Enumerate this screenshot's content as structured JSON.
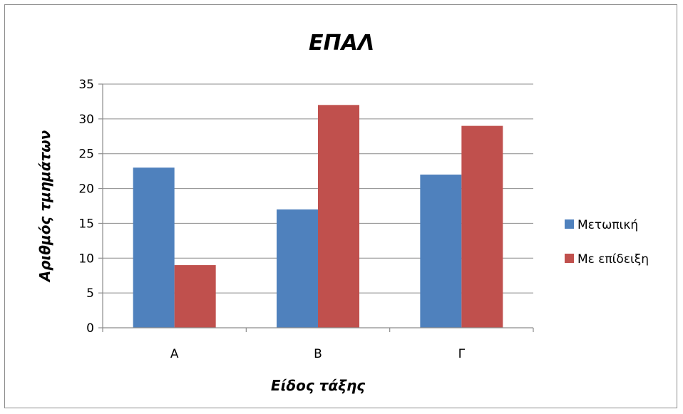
{
  "chart_data": {
    "type": "bar",
    "title": "ΕΠΑΛ",
    "xlabel": "Είδος τάξης",
    "ylabel": "Αριθμός τμημάτων",
    "categories": [
      "Α",
      "Β",
      "Γ"
    ],
    "series": [
      {
        "name": "Μετωπική",
        "values": [
          23,
          17,
          22
        ],
        "color": "#4f81bd"
      },
      {
        "name": "Με επίδειξη",
        "values": [
          9,
          32,
          29
        ],
        "color": "#c0504d"
      }
    ],
    "ylim": [
      0,
      35
    ],
    "yticks": [
      0,
      5,
      10,
      15,
      20,
      25,
      30,
      35
    ],
    "grid": true,
    "legend_position": "right"
  }
}
